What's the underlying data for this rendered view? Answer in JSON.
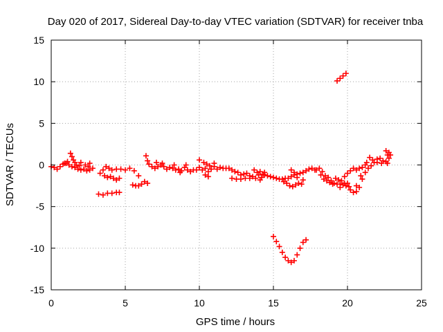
{
  "chart_data": {
    "type": "scatter",
    "title": "Day 020 of 2017, Sidereal Day-to-day VTEC variation (SDTVAR) for receiver tnba",
    "xlabel": "GPS time / hours",
    "ylabel": "SDTVAR / TECUs",
    "xlim": [
      0,
      25
    ],
    "ylim": [
      -15,
      15
    ],
    "xticks": [
      0,
      5,
      10,
      15,
      20,
      25
    ],
    "xtick_labels": [
      "0",
      "5",
      "10",
      "15",
      "20",
      "25"
    ],
    "yticks": [
      -15,
      -10,
      -5,
      0,
      5,
      10,
      15
    ],
    "ytick_labels": [
      "-15",
      "-10",
      "-5",
      "0",
      "5",
      "10",
      "15"
    ],
    "grid": true,
    "marker": "+",
    "series": [
      {
        "name": "tnba",
        "color": "#ff0000",
        "points": [
          [
            0.0,
            -0.2
          ],
          [
            0.2,
            -0.3
          ],
          [
            0.4,
            -0.5
          ],
          [
            0.6,
            -0.2
          ],
          [
            0.8,
            0.1
          ],
          [
            1.0,
            0.2
          ],
          [
            1.2,
            0.0
          ],
          [
            1.4,
            -0.2
          ],
          [
            1.6,
            -0.3
          ],
          [
            1.8,
            -0.5
          ],
          [
            2.0,
            -0.6
          ],
          [
            2.2,
            -0.5
          ],
          [
            2.4,
            -0.7
          ],
          [
            2.6,
            -0.6
          ],
          [
            1.3,
            1.4
          ],
          [
            1.4,
            1.0
          ],
          [
            1.5,
            0.6
          ],
          [
            1.6,
            0.3
          ],
          [
            1.7,
            0.0
          ],
          [
            2.0,
            0.3
          ],
          [
            2.3,
            0.0
          ],
          [
            2.6,
            0.2
          ],
          [
            2.8,
            -0.4
          ],
          [
            0.9,
            0.2
          ],
          [
            1.1,
            0.4
          ],
          [
            1.9,
            -0.1
          ],
          [
            2.5,
            -0.2
          ],
          [
            3.2,
            -3.5
          ],
          [
            3.5,
            -3.6
          ],
          [
            3.8,
            -3.4
          ],
          [
            4.1,
            -3.4
          ],
          [
            4.4,
            -3.3
          ],
          [
            4.6,
            -3.3
          ],
          [
            3.3,
            -1.0
          ],
          [
            3.5,
            -0.6
          ],
          [
            3.7,
            -0.2
          ],
          [
            3.9,
            -0.4
          ],
          [
            4.1,
            -0.6
          ],
          [
            4.4,
            -0.5
          ],
          [
            4.7,
            -0.5
          ],
          [
            5.0,
            -0.6
          ],
          [
            5.3,
            -0.4
          ],
          [
            5.6,
            -0.7
          ],
          [
            5.9,
            -1.3
          ],
          [
            3.6,
            -1.3
          ],
          [
            3.8,
            -1.5
          ],
          [
            4.0,
            -1.4
          ],
          [
            4.2,
            -1.6
          ],
          [
            4.4,
            -1.8
          ],
          [
            4.6,
            -1.6
          ],
          [
            5.5,
            -2.4
          ],
          [
            5.7,
            -2.5
          ],
          [
            5.9,
            -2.5
          ],
          [
            6.1,
            -2.3
          ],
          [
            6.3,
            -2.0
          ],
          [
            6.5,
            -2.2
          ],
          [
            6.4,
            1.1
          ],
          [
            6.5,
            0.5
          ],
          [
            6.6,
            0.1
          ],
          [
            6.8,
            -0.2
          ],
          [
            7.0,
            -0.4
          ],
          [
            7.2,
            -0.2
          ],
          [
            7.4,
            0.0
          ],
          [
            7.6,
            -0.2
          ],
          [
            7.8,
            -0.5
          ],
          [
            8.0,
            -0.3
          ],
          [
            8.2,
            -0.4
          ],
          [
            8.4,
            -0.6
          ],
          [
            8.6,
            -0.5
          ],
          [
            8.8,
            -0.7
          ],
          [
            9.0,
            -0.3
          ],
          [
            9.2,
            -0.6
          ],
          [
            9.4,
            -0.8
          ],
          [
            9.6,
            -0.6
          ],
          [
            9.8,
            -0.6
          ],
          [
            7.1,
            0.3
          ],
          [
            7.5,
            0.2
          ],
          [
            8.3,
            0.0
          ],
          [
            9.1,
            0.0
          ],
          [
            8.7,
            -0.9
          ],
          [
            10.0,
            -0.3
          ],
          [
            10.2,
            -0.6
          ],
          [
            10.4,
            -0.4
          ],
          [
            10.6,
            -0.8
          ],
          [
            10.8,
            -0.5
          ],
          [
            11.0,
            -0.2
          ],
          [
            11.2,
            -0.5
          ],
          [
            11.4,
            -0.3
          ],
          [
            11.6,
            -0.4
          ],
          [
            11.8,
            -0.4
          ],
          [
            12.0,
            -0.4
          ],
          [
            12.2,
            -0.6
          ],
          [
            12.4,
            -0.8
          ],
          [
            12.6,
            -0.9
          ],
          [
            12.8,
            -1.2
          ],
          [
            13.0,
            -1.1
          ],
          [
            13.2,
            -1.0
          ],
          [
            13.4,
            -1.3
          ],
          [
            13.6,
            -1.4
          ],
          [
            13.8,
            -1.6
          ],
          [
            14.0,
            -1.2
          ],
          [
            14.2,
            -1.5
          ],
          [
            14.4,
            -1.2
          ],
          [
            14.6,
            -1.3
          ],
          [
            10.0,
            0.6
          ],
          [
            10.3,
            0.3
          ],
          [
            10.5,
            0.1
          ],
          [
            10.7,
            -0.1
          ],
          [
            11.0,
            0.2
          ],
          [
            10.4,
            -1.2
          ],
          [
            10.6,
            -1.4
          ],
          [
            12.2,
            -1.6
          ],
          [
            12.5,
            -1.7
          ],
          [
            12.8,
            -1.7
          ],
          [
            13.1,
            -1.6
          ],
          [
            13.4,
            -1.6
          ],
          [
            13.7,
            -0.6
          ],
          [
            13.9,
            -0.9
          ],
          [
            14.1,
            -0.8
          ],
          [
            14.3,
            -1.1
          ],
          [
            14.1,
            -1.8
          ],
          [
            14.4,
            -0.9
          ],
          [
            14.8,
            -1.4
          ],
          [
            15.0,
            -1.5
          ],
          [
            15.2,
            -1.6
          ],
          [
            15.4,
            -1.7
          ],
          [
            15.6,
            -1.7
          ],
          [
            15.8,
            -1.6
          ],
          [
            16.0,
            -1.6
          ],
          [
            16.2,
            -1.4
          ],
          [
            16.4,
            -1.2
          ],
          [
            16.6,
            -1.1
          ],
          [
            16.8,
            -1.0
          ],
          [
            17.0,
            -0.9
          ],
          [
            17.2,
            -0.7
          ],
          [
            17.4,
            -0.5
          ],
          [
            17.6,
            -0.4
          ],
          [
            17.8,
            -0.6
          ],
          [
            15.7,
            -2.0
          ],
          [
            15.9,
            -2.2
          ],
          [
            16.1,
            -2.5
          ],
          [
            16.3,
            -2.6
          ],
          [
            16.5,
            -2.4
          ],
          [
            16.7,
            -2.2
          ],
          [
            16.9,
            -2.3
          ],
          [
            17.0,
            -1.8
          ],
          [
            16.2,
            -0.6
          ],
          [
            16.4,
            -0.9
          ],
          [
            16.6,
            -1.5
          ],
          [
            15.0,
            -8.6
          ],
          [
            15.2,
            -9.2
          ],
          [
            15.4,
            -9.8
          ],
          [
            15.6,
            -10.5
          ],
          [
            15.8,
            -11.1
          ],
          [
            16.0,
            -11.5
          ],
          [
            16.2,
            -11.7
          ],
          [
            16.4,
            -11.5
          ],
          [
            16.6,
            -10.8
          ],
          [
            16.8,
            -10.0
          ],
          [
            17.0,
            -9.3
          ],
          [
            17.2,
            -9.0
          ],
          [
            17.9,
            -0.6
          ],
          [
            18.1,
            -0.4
          ],
          [
            18.3,
            -0.8
          ],
          [
            18.5,
            -1.3
          ],
          [
            18.7,
            -1.5
          ],
          [
            18.9,
            -1.9
          ],
          [
            19.1,
            -2.2
          ],
          [
            19.3,
            -2.3
          ],
          [
            19.5,
            -2.3
          ],
          [
            19.7,
            -2.4
          ],
          [
            19.9,
            -2.5
          ],
          [
            18.2,
            -1.2
          ],
          [
            18.4,
            -1.7
          ],
          [
            18.6,
            -1.9
          ],
          [
            18.8,
            -2.1
          ],
          [
            19.0,
            -2.3
          ],
          [
            19.2,
            -1.6
          ],
          [
            19.4,
            -1.8
          ],
          [
            19.6,
            -1.9
          ],
          [
            19.8,
            -2.2
          ],
          [
            19.5,
            -2.7
          ],
          [
            20.0,
            -2.2
          ],
          [
            20.1,
            -2.6
          ],
          [
            20.2,
            -3.0
          ],
          [
            20.4,
            -3.3
          ],
          [
            20.6,
            -3.2
          ],
          [
            20.8,
            -2.7
          ],
          [
            21.0,
            -1.7
          ],
          [
            21.2,
            -0.9
          ],
          [
            21.4,
            -0.4
          ],
          [
            21.6,
            -0.1
          ],
          [
            21.8,
            0.3
          ],
          [
            22.0,
            0.7
          ],
          [
            22.2,
            0.8
          ],
          [
            22.4,
            0.5
          ],
          [
            22.6,
            0.4
          ],
          [
            19.8,
            -1.4
          ],
          [
            20.0,
            -1.0
          ],
          [
            20.2,
            -0.7
          ],
          [
            20.4,
            -0.4
          ],
          [
            20.6,
            -0.6
          ],
          [
            20.8,
            -0.4
          ],
          [
            21.0,
            -0.3
          ],
          [
            21.2,
            0.0
          ],
          [
            21.3,
            0.3
          ],
          [
            20.9,
            -1.3
          ],
          [
            20.6,
            -2.5
          ],
          [
            21.5,
            0.9
          ],
          [
            21.7,
            0.6
          ],
          [
            22.0,
            0.3
          ],
          [
            22.3,
            0.2
          ],
          [
            22.6,
            1.7
          ],
          [
            22.7,
            1.2
          ],
          [
            22.8,
            0.8
          ],
          [
            22.7,
            0.2
          ],
          [
            22.8,
            1.5
          ],
          [
            22.9,
            1.2
          ],
          [
            19.3,
            10.1
          ],
          [
            19.5,
            10.4
          ],
          [
            19.7,
            10.7
          ],
          [
            19.9,
            11.0
          ]
        ]
      }
    ]
  }
}
